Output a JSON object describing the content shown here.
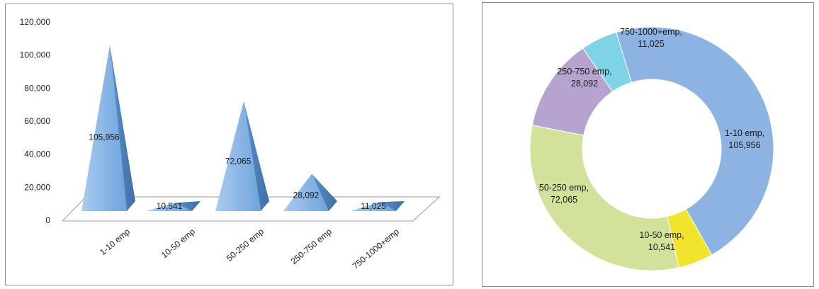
{
  "chart_data": [
    {
      "type": "bar",
      "style": "3d-pyramid",
      "categories": [
        "1-10 emp",
        "10-50 emp",
        "50-250 emp",
        "250-750 emp",
        "750-1000+emp"
      ],
      "values": [
        105956,
        10541,
        72065,
        28092,
        11025
      ],
      "data_labels": [
        "105,956",
        "10,541",
        "72,065",
        "28,092",
        "11,025"
      ],
      "y_ticks": [
        "0",
        "20,000",
        "40,000",
        "60,000",
        "80,000",
        "100,000",
        "120,000"
      ],
      "ylim": [
        0,
        120000
      ],
      "grid": false,
      "legend": "none",
      "color": "#6fa3dc"
    },
    {
      "type": "pie",
      "style": "doughnut",
      "labels": [
        "1-10 emp",
        "10-50 emp",
        "50-250 emp",
        "250-750 emp",
        "750-1000+emp"
      ],
      "values": [
        105956,
        10541,
        72065,
        28092,
        11025
      ],
      "data_labels": [
        [
          "1-10 emp,",
          "105,956"
        ],
        [
          "10-50 emp,",
          "10,541"
        ],
        [
          "50-250 emp,",
          "72,065"
        ],
        [
          "250-750 emp,",
          "28,092"
        ],
        [
          "750-1000+emp,",
          "11,025"
        ]
      ],
      "colors": [
        "#8db3e2",
        "#f2e42c",
        "#d2e29a",
        "#b7a3cf",
        "#7fd3e6"
      ],
      "legend": "none"
    }
  ]
}
